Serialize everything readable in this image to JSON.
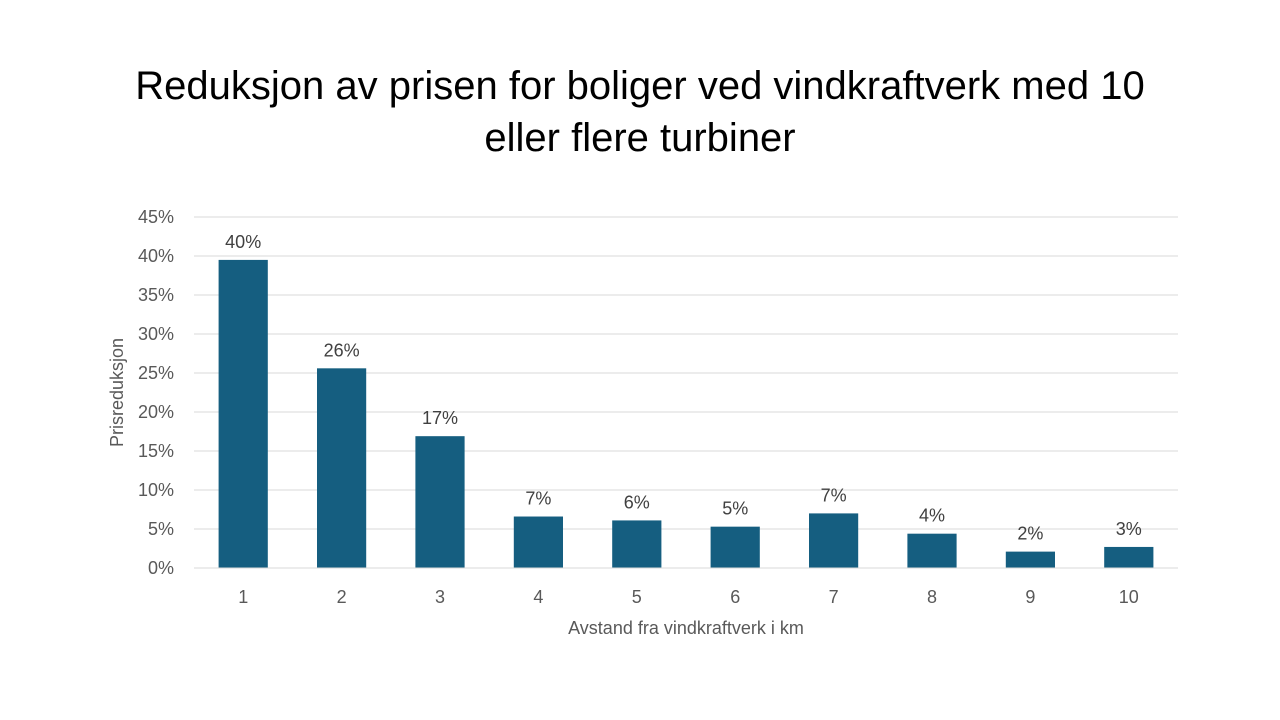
{
  "title_lines": [
    "Reduksjon av prisen for boliger ved vindkraftverk med 10",
    "eller flere turbiner"
  ],
  "chart_data": {
    "type": "bar",
    "title": "Reduksjon av prisen for boliger ved vindkraftverk med 10 eller flere turbiner",
    "xlabel": "Avstand fra vindkraftverk i km",
    "ylabel": "Prisreduksjon",
    "categories": [
      "1",
      "2",
      "3",
      "4",
      "5",
      "6",
      "7",
      "8",
      "9",
      "10"
    ],
    "values": [
      0.395,
      0.256,
      0.169,
      0.066,
      0.061,
      0.053,
      0.07,
      0.044,
      0.021,
      0.027
    ],
    "data_labels": [
      "40%",
      "26%",
      "17%",
      "7%",
      "6%",
      "5%",
      "7%",
      "4%",
      "2%",
      "3%"
    ],
    "ylim": [
      0,
      0.45
    ],
    "yticks": [
      0,
      0.05,
      0.1,
      0.15,
      0.2,
      0.25,
      0.3,
      0.35,
      0.4,
      0.45
    ],
    "ytick_labels": [
      "0%",
      "5%",
      "10%",
      "15%",
      "20%",
      "25%",
      "30%",
      "35%",
      "40%",
      "45%"
    ],
    "grid": true,
    "legend": "none",
    "bar_color": "#155e80",
    "grid_color": "#d9d9d9"
  }
}
